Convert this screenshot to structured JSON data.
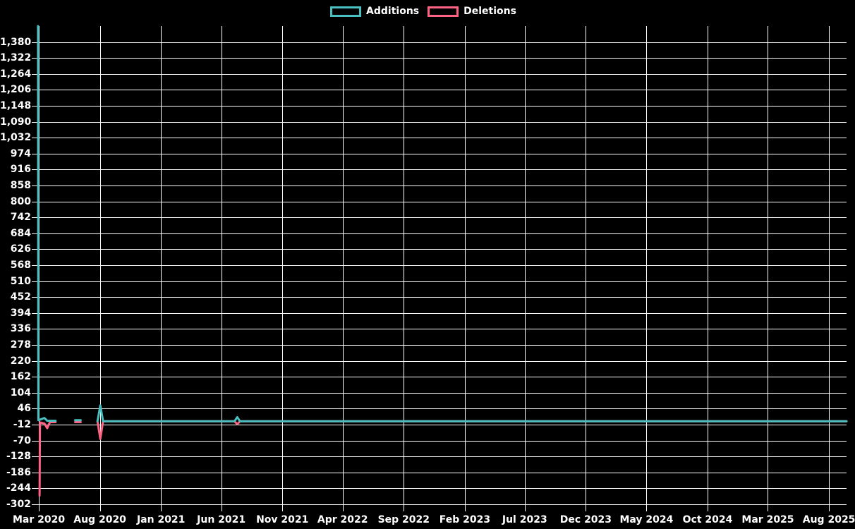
{
  "chart": {
    "background_color": "#000000",
    "grid_color": "#ffffff",
    "text_color": "#ffffff",
    "line_width": 3,
    "grid_line_width": 1
  },
  "chart_data": {
    "type": "line",
    "title": "",
    "xlabel": "",
    "ylabel": "",
    "grid": true,
    "legend_position": "top-center",
    "ylim": [
      -302,
      1438
    ],
    "y_tick_step": 58,
    "x_range": [
      "2020-03-01",
      "2025-09-14"
    ],
    "y_ticks": [
      {
        "label": "1,380",
        "value": 1380
      },
      {
        "label": "1,322",
        "value": 1322
      },
      {
        "label": "1,264",
        "value": 1264
      },
      {
        "label": "1,206",
        "value": 1206
      },
      {
        "label": "1,148",
        "value": 1148
      },
      {
        "label": "1,090",
        "value": 1090
      },
      {
        "label": "1,032",
        "value": 1032
      },
      {
        "label": "974",
        "value": 974
      },
      {
        "label": "916",
        "value": 916
      },
      {
        "label": "858",
        "value": 858
      },
      {
        "label": "800",
        "value": 800
      },
      {
        "label": "742",
        "value": 742
      },
      {
        "label": "684",
        "value": 684
      },
      {
        "label": "626",
        "value": 626
      },
      {
        "label": "568",
        "value": 568
      },
      {
        "label": "510",
        "value": 510
      },
      {
        "label": "452",
        "value": 452
      },
      {
        "label": "394",
        "value": 394
      },
      {
        "label": "336",
        "value": 336
      },
      {
        "label": "278",
        "value": 278
      },
      {
        "label": "220",
        "value": 220
      },
      {
        "label": "162",
        "value": 162
      },
      {
        "label": "104",
        "value": 104
      },
      {
        "label": "46",
        "value": 46
      },
      {
        "label": "-12",
        "value": -12
      },
      {
        "label": "-70",
        "value": -70
      },
      {
        "label": "-128",
        "value": -128
      },
      {
        "label": "-186",
        "value": -186
      },
      {
        "label": "-244",
        "value": -244
      },
      {
        "label": "-302",
        "value": -302
      }
    ],
    "x_ticks": [
      {
        "label": "Mar 2020",
        "date": "2020-03-01"
      },
      {
        "label": "Aug 2020",
        "date": "2020-08-01"
      },
      {
        "label": "Jan 2021",
        "date": "2021-01-01"
      },
      {
        "label": "Jun 2021",
        "date": "2021-06-01"
      },
      {
        "label": "Nov 2021",
        "date": "2021-11-01"
      },
      {
        "label": "Apr 2022",
        "date": "2022-04-01"
      },
      {
        "label": "Sep 2022",
        "date": "2022-09-01"
      },
      {
        "label": "Feb 2023",
        "date": "2023-02-01"
      },
      {
        "label": "Jul 2023",
        "date": "2023-07-01"
      },
      {
        "label": "Dec 2023",
        "date": "2023-12-01"
      },
      {
        "label": "May 2024",
        "date": "2024-05-01"
      },
      {
        "label": "Oct 2024",
        "date": "2024-10-01"
      },
      {
        "label": "Mar 2025",
        "date": "2025-03-01"
      },
      {
        "label": "Aug 2025",
        "date": "2025-08-01"
      }
    ],
    "series": [
      {
        "name": "Deletions",
        "color": "#ff6384",
        "points": [
          [
            "2020-03-03",
            -270
          ],
          [
            "2020-03-04",
            -4
          ],
          [
            "2020-03-15",
            -8
          ],
          [
            "2020-03-22",
            -25
          ],
          [
            "2020-03-29",
            -3
          ],
          [
            "2020-04-12",
            -3
          ],
          [
            "2020-04-26",
            null
          ],
          [
            "2020-05-31",
            -3
          ],
          [
            "2020-06-07",
            -3
          ],
          [
            "2020-06-14",
            -3
          ],
          [
            "2020-06-28",
            null
          ],
          [
            "2020-07-26",
            0
          ],
          [
            "2020-08-02",
            -64
          ],
          [
            "2020-08-09",
            0
          ],
          [
            "2021-07-04",
            0
          ],
          [
            "2021-07-11",
            -10
          ],
          [
            "2021-07-18",
            0
          ],
          [
            "2025-09-14",
            0
          ]
        ]
      },
      {
        "name": "Additions",
        "color": "#4bc0c0",
        "points": [
          [
            "2020-02-28",
            1438
          ],
          [
            "2020-02-29",
            4
          ],
          [
            "2020-03-15",
            12
          ],
          [
            "2020-03-22",
            2
          ],
          [
            "2020-03-29",
            2
          ],
          [
            "2020-04-12",
            2
          ],
          [
            "2020-04-26",
            null
          ],
          [
            "2020-05-31",
            4
          ],
          [
            "2020-06-07",
            4
          ],
          [
            "2020-06-14",
            4
          ],
          [
            "2020-06-28",
            null
          ],
          [
            "2020-07-26",
            0
          ],
          [
            "2020-08-02",
            58
          ],
          [
            "2020-08-09",
            0
          ],
          [
            "2021-07-04",
            0
          ],
          [
            "2021-07-11",
            15
          ],
          [
            "2021-07-18",
            0
          ],
          [
            "2025-09-14",
            0
          ]
        ]
      }
    ]
  }
}
